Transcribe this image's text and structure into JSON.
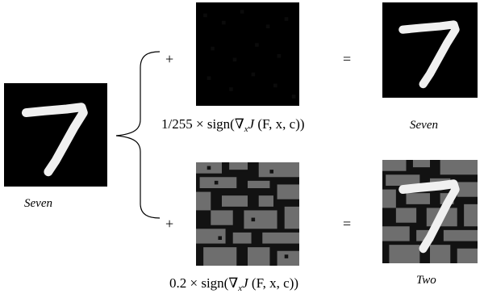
{
  "original": {
    "caption": "Seven"
  },
  "perturbations": [
    {
      "operator": "+",
      "equals": "=",
      "coefficient": "1/255",
      "times": "×",
      "sign_text": "sign(∇",
      "grad_sub": "x",
      "loss": "J",
      "args": " (F, x, c))",
      "result_caption": "Seven"
    },
    {
      "operator": "+",
      "equals": "=",
      "coefficient": "0.2",
      "times": "×",
      "sign_text": "sign(∇",
      "grad_sub": "x",
      "loss": "J",
      "args": " (F, x, c))",
      "result_caption": "Two"
    }
  ],
  "colors": {
    "background": "#000000",
    "digit": "#f0f0f0",
    "noise_gray": "#6e6e6e",
    "noise_dark": "#121212"
  },
  "icons": [
    "curly-brace-icon"
  ]
}
